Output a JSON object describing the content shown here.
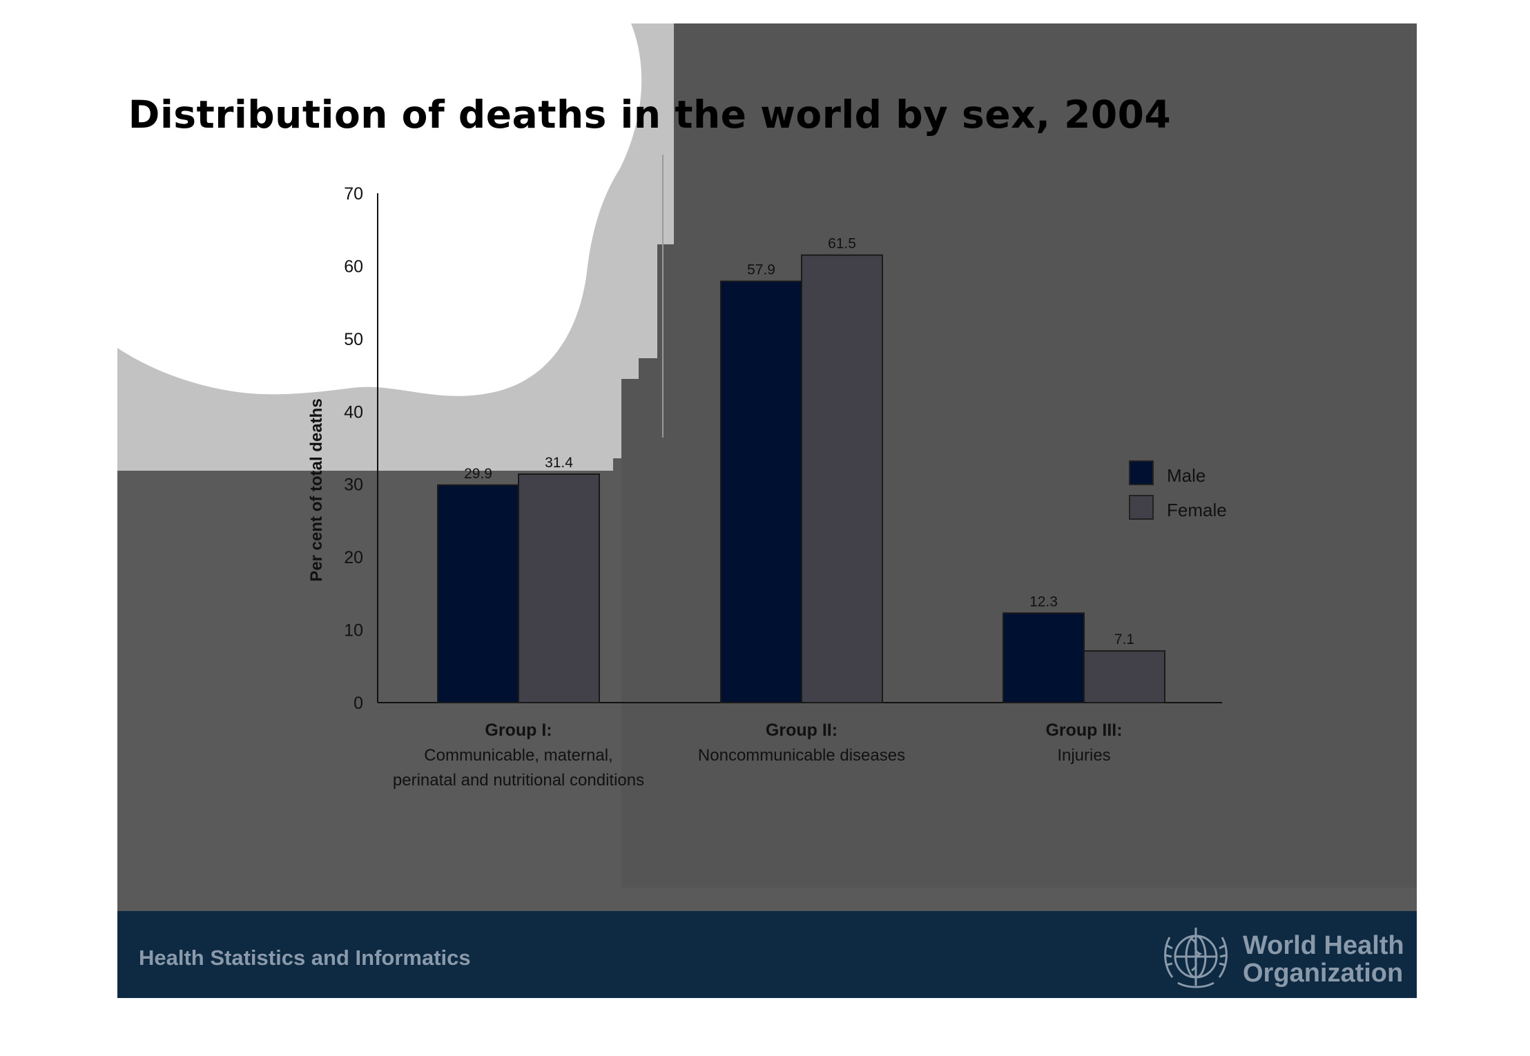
{
  "slide": {
    "title": "Distribution of deaths in the world by sex, 2004",
    "footer_text": "Health Statistics and Informatics",
    "logo_name": "World Health Organization"
  },
  "colors": {
    "male": "#001030",
    "female": "#42414a",
    "slide_bg": "#5a5a5a",
    "footer_bg": "#0e2a42"
  },
  "chart_data": {
    "type": "bar",
    "title": "",
    "ylabel": "Per cent of total deaths",
    "xlabel": "",
    "ylim": [
      0,
      70
    ],
    "yticks": [
      0,
      10,
      20,
      30,
      40,
      50,
      60,
      70
    ],
    "categories": [
      {
        "label": "Group I:",
        "desc": [
          "Communicable, maternal,",
          "perinatal and nutritional conditions"
        ]
      },
      {
        "label": "Group II:",
        "desc": [
          "Noncommunicable diseases"
        ]
      },
      {
        "label": "Group III:",
        "desc": [
          "Injuries"
        ]
      }
    ],
    "series": [
      {
        "name": "Male",
        "values": [
          29.9,
          57.9,
          12.3
        ]
      },
      {
        "name": "Female",
        "values": [
          31.4,
          61.5,
          7.1
        ]
      }
    ],
    "legend_position": "right",
    "grid": false
  }
}
